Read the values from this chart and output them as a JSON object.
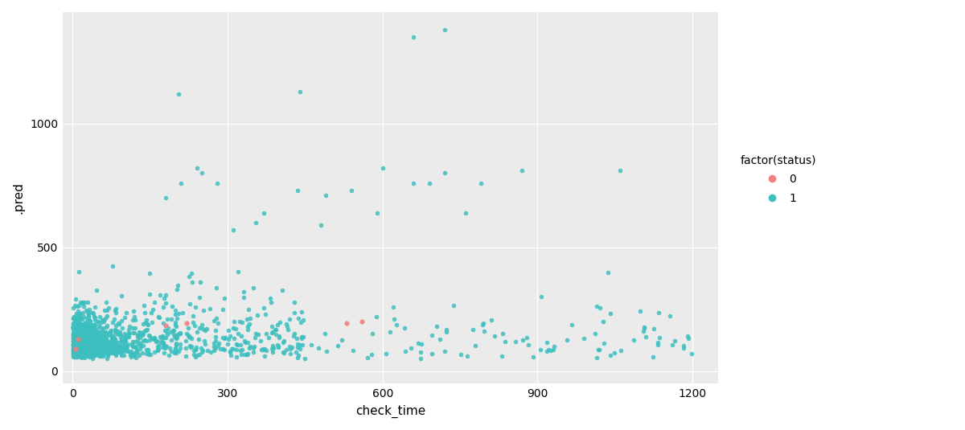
{
  "title": "",
  "xlabel": "check_time",
  "ylabel": ".pred",
  "xlim": [
    -20,
    1250
  ],
  "ylim": [
    -50,
    1450
  ],
  "xticks": [
    0,
    300,
    600,
    900,
    1200
  ],
  "yticks": [
    0,
    500,
    1000
  ],
  "bg_color": "#EBEBEB",
  "grid_color": "#FFFFFF",
  "color_0": "#F08080",
  "color_1": "#3DBFBF",
  "legend_title": "factor(status)",
  "seed": 123
}
